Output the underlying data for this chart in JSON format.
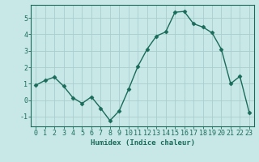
{
  "x": [
    0,
    1,
    2,
    3,
    4,
    5,
    6,
    7,
    8,
    9,
    10,
    11,
    12,
    13,
    14,
    15,
    16,
    17,
    18,
    19,
    20,
    21,
    22,
    23
  ],
  "y": [
    0.9,
    1.2,
    1.4,
    0.85,
    0.15,
    -0.2,
    0.2,
    -0.5,
    -1.25,
    -0.65,
    0.65,
    2.05,
    3.1,
    3.9,
    4.15,
    5.35,
    5.4,
    4.65,
    4.45,
    4.1,
    3.1,
    1.0,
    1.45,
    -0.75
  ],
  "line_color": "#1a6b5a",
  "marker": "D",
  "marker_size": 2.5,
  "background_color": "#c8e8e8",
  "grid_color": "#aacece",
  "xlabel": "Humidex (Indice chaleur)",
  "ylim": [
    -1.6,
    5.8
  ],
  "xlim": [
    -0.5,
    23.5
  ],
  "yticks": [
    -1,
    0,
    1,
    2,
    3,
    4,
    5
  ],
  "xticks": [
    0,
    1,
    2,
    3,
    4,
    5,
    6,
    7,
    8,
    9,
    10,
    11,
    12,
    13,
    14,
    15,
    16,
    17,
    18,
    19,
    20,
    21,
    22,
    23
  ],
  "axis_color": "#1a6b5a",
  "tick_color": "#1a6b5a",
  "label_color": "#1a6b5a",
  "font_size_xlabel": 6.5,
  "font_size_tick": 6.0,
  "linewidth": 1.0
}
